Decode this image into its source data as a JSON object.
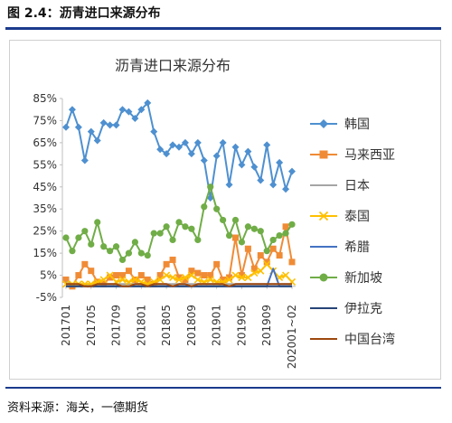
{
  "figure": {
    "title": "图 2.4：沥青进口来源分布",
    "source": "资料来源：海关，一德期货"
  },
  "chart_data": {
    "type": "line",
    "title": "沥青进口来源分布",
    "xlabel": "",
    "ylabel": "",
    "ylim": [
      -5,
      85
    ],
    "y_ticks": [
      "-5%",
      "5%",
      "15%",
      "25%",
      "35%",
      "45%",
      "55%",
      "65%",
      "75%",
      "85%"
    ],
    "x_tick_labels": [
      "201701",
      "201705",
      "201709",
      "201801",
      "201805",
      "201809",
      "201901",
      "201905",
      "201909",
      "202001~02"
    ],
    "legend_position": "right",
    "x": [
      "201701",
      "201702",
      "201703",
      "201704",
      "201705",
      "201706",
      "201707",
      "201708",
      "201709",
      "201710",
      "201711",
      "201712",
      "201801",
      "201802",
      "201803",
      "201804",
      "201805",
      "201806",
      "201807",
      "201808",
      "201809",
      "201810",
      "201811",
      "201812",
      "201901",
      "201902",
      "201903",
      "201904",
      "201905",
      "201906",
      "201907",
      "201908",
      "201909",
      "201910",
      "201911",
      "201912",
      "202001~02"
    ],
    "series": [
      {
        "name": "韩国",
        "color": "#4e90d0",
        "marker": "diamond",
        "values": [
          72,
          80,
          72,
          57,
          70,
          66,
          74,
          73,
          73,
          80,
          79,
          76,
          80,
          83,
          70,
          62,
          60,
          64,
          63,
          65,
          60,
          65,
          57,
          40,
          59,
          65,
          46,
          63,
          55,
          61,
          54,
          48,
          64,
          46,
          56,
          44,
          52
        ]
      },
      {
        "name": "马来西亚",
        "color": "#f08b35",
        "marker": "square",
        "values": [
          3,
          0,
          5,
          10,
          7,
          2,
          1,
          4,
          5,
          5,
          7,
          3,
          5,
          3,
          1,
          5,
          10,
          12,
          4,
          3,
          7,
          6,
          5,
          5,
          10,
          3,
          4,
          22,
          5,
          17,
          8,
          14,
          11,
          17,
          14,
          27,
          11
        ]
      },
      {
        "name": "日本",
        "color": "#a5a5a5",
        "marker": "none",
        "values": [
          2,
          1,
          1,
          1,
          1,
          1,
          1,
          1,
          1,
          1,
          1,
          1,
          1,
          1,
          1,
          1,
          1,
          1,
          1,
          1,
          1,
          1,
          1,
          1,
          1,
          1,
          1,
          1,
          1,
          1,
          1,
          1,
          1,
          1,
          1,
          1,
          1
        ]
      },
      {
        "name": "泰国",
        "color": "#ffc000",
        "marker": "x",
        "values": [
          1,
          1,
          1,
          1,
          1,
          2,
          3,
          5,
          2,
          3,
          2,
          3,
          2,
          1,
          2,
          3,
          5,
          4,
          3,
          4,
          5,
          3,
          2,
          3,
          2,
          2,
          3,
          5,
          4,
          4,
          6,
          7,
          10,
          7,
          4,
          5,
          2
        ]
      },
      {
        "name": "希腊",
        "color": "#4472c4",
        "marker": "none",
        "values": [
          0,
          0,
          0,
          0,
          0,
          0,
          0,
          0,
          0,
          0,
          0,
          0,
          0,
          0,
          0,
          0,
          0,
          0,
          0,
          0,
          0,
          0,
          0,
          0,
          0,
          0,
          0,
          0,
          0,
          0,
          0,
          0,
          0,
          8,
          0,
          0,
          0
        ]
      },
      {
        "name": "新加坡",
        "color": "#70ad47",
        "marker": "circle",
        "values": [
          22,
          16,
          22,
          25,
          19,
          29,
          18,
          16,
          18,
          12,
          15,
          20,
          15,
          14,
          24,
          24,
          27,
          21,
          29,
          27,
          26,
          21,
          36,
          45,
          35,
          30,
          23,
          30,
          20,
          27,
          26,
          25,
          16,
          21,
          23,
          24,
          28
        ]
      },
      {
        "name": "伊拉克",
        "color": "#264478",
        "marker": "none",
        "values": [
          0,
          0,
          0,
          0,
          0,
          0,
          0,
          0,
          0,
          0,
          0,
          0,
          0,
          0,
          0,
          0,
          0,
          0,
          0,
          0,
          0,
          0,
          0,
          0,
          0,
          0,
          0,
          0,
          0,
          0,
          0,
          0,
          0,
          0,
          0,
          0,
          0
        ]
      },
      {
        "name": "中国台湾",
        "color": "#9e480e",
        "marker": "none",
        "values": [
          1,
          1,
          1,
          0,
          0,
          1,
          1,
          1,
          1,
          0,
          0,
          1,
          1,
          0,
          1,
          1,
          1,
          0,
          1,
          1,
          0,
          1,
          1,
          1,
          1,
          1,
          0,
          1,
          1,
          1,
          1,
          1,
          1,
          1,
          1,
          1,
          1
        ]
      }
    ]
  }
}
